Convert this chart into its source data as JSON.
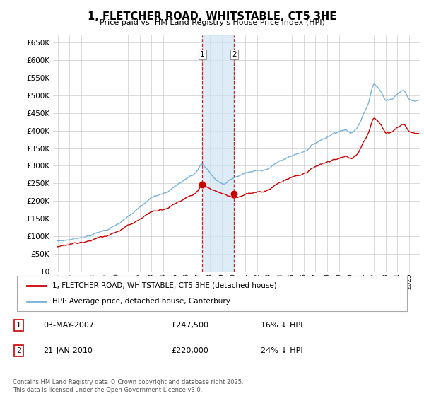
{
  "title": "1, FLETCHER ROAD, WHITSTABLE, CT5 3HE",
  "subtitle": "Price paid vs. HM Land Registry's House Price Index (HPI)",
  "ylim": [
    0,
    670000
  ],
  "yticks": [
    0,
    50000,
    100000,
    150000,
    200000,
    250000,
    300000,
    350000,
    400000,
    450000,
    500000,
    550000,
    600000,
    650000
  ],
  "hpi_color": "#7ab3d8",
  "price_color": "#cc0000",
  "shade_color": "#d0e4f5",
  "t1": 2007.35,
  "t2": 2010.05,
  "p1": 247500,
  "p2": 220000,
  "legend_entry1": "1, FLETCHER ROAD, WHITSTABLE, CT5 3HE (detached house)",
  "legend_entry2": "HPI: Average price, detached house, Canterbury",
  "background_color": "#ffffff",
  "grid_color": "#cccccc",
  "footnote": "Contains HM Land Registry data © Crown copyright and database right 2025.\nThis data is licensed under the Open Government Licence v3.0."
}
